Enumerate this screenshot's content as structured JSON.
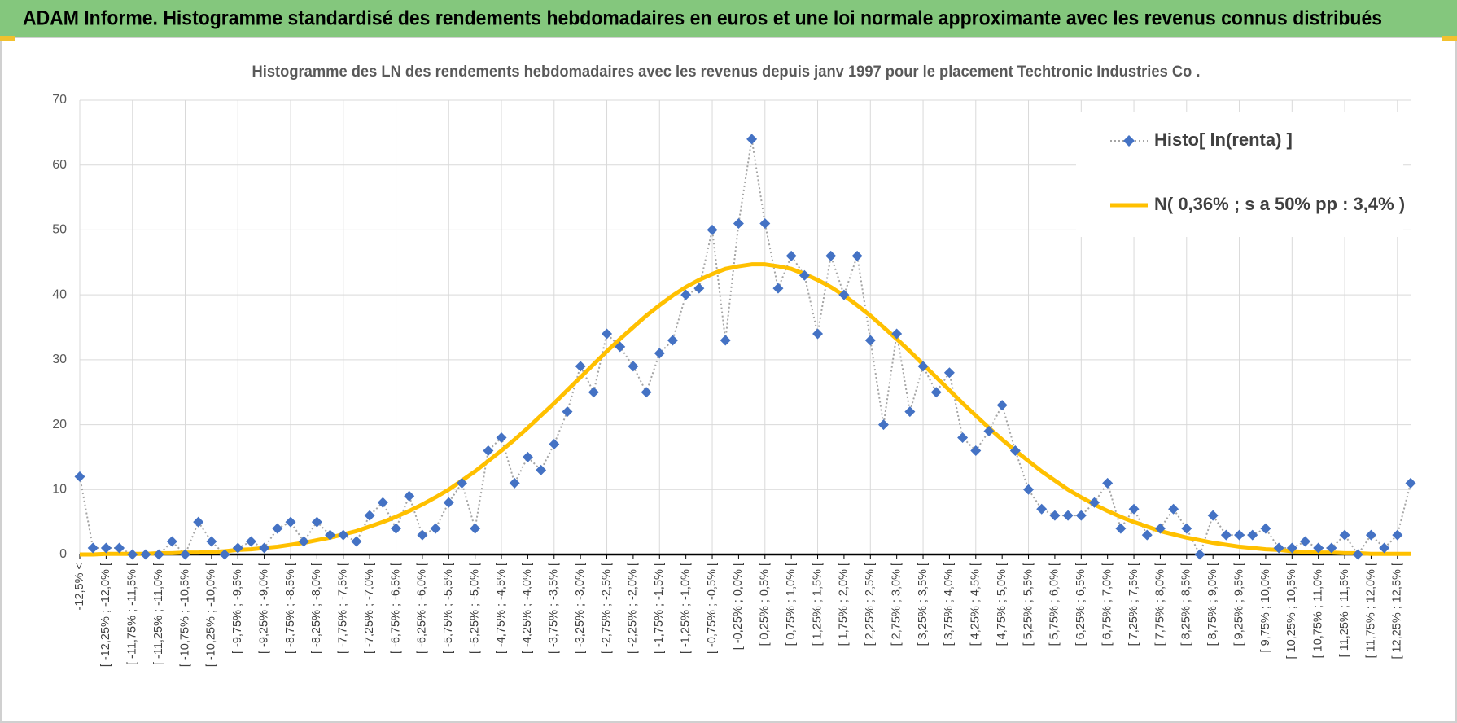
{
  "header": {
    "title": "ADAM Informe. Histogramme standardisé des rendements hebdomadaires en euros et une loi normale approximante avec les revenus connus distribués"
  },
  "chart_data": {
    "type": "line",
    "title": "Histogramme des LN des rendements hebdomadaires avec les revenus depuis janv 1997 pour le placement Techtronic Industries Co .",
    "categories": [
      "-12,5% <",
      null,
      "[ -12,25% ; -12,0% [",
      null,
      "[ -11,75% ; -11,5% [",
      null,
      "[ -11,25% ; -11,0% [",
      null,
      "[ -10,75% ; -10,5% [",
      null,
      "[ -10,25% ; -10,0% [",
      null,
      "[ -9,75% ; -9,5% [",
      null,
      "[ -9,25% ; -9,0% [",
      null,
      "[ -8,75% ; -8,5% [",
      null,
      "[ -8,25% ; -8,0% [",
      null,
      "[ -7,75% ; -7,5% [",
      null,
      "[ -7,25% ; -7,0% [",
      null,
      "[ -6,75% ; -6,5% [",
      null,
      "[ -6,25% ; -6,0% [",
      null,
      "[ -5,75% ; -5,5% [",
      null,
      "[ -5,25% ; -5,0% [",
      null,
      "[ -4,75% ; -4,5% [",
      null,
      "[ -4,25% ; -4,0% [",
      null,
      "[ -3,75% ; -3,5% [",
      null,
      "[ -3,25% ; -3,0% [",
      null,
      "[ -2,75% ; -2,5% [",
      null,
      "[ -2,25% ; -2,0% [",
      null,
      "[ -1,75% ; -1,5% [",
      null,
      "[ -1,25% ; -1,0% [",
      null,
      "[ -0,75% ; -0,5% [",
      null,
      "[ -0,25% ; 0,0% [",
      null,
      "[ 0,25% ; 0,5% [",
      null,
      "[ 0,75% ; 1,0% [",
      null,
      "[ 1,25% ; 1,5% [",
      null,
      "[ 1,75% ; 2,0% [",
      null,
      "[ 2,25% ; 2,5% [",
      null,
      "[ 2,75% ; 3,0% [",
      null,
      "[ 3,25% ; 3,5% [",
      null,
      "[ 3,75% ; 4,0% [",
      null,
      "[ 4,25% ; 4,5% [",
      null,
      "[ 4,75% ; 5,0% [",
      null,
      "[ 5,25% ; 5,5% [",
      null,
      "[ 5,75% ; 6,0% [",
      null,
      "[ 6,25% ; 6,5% [",
      null,
      "[ 6,75% ; 7,0% [",
      null,
      "[ 7,25% ; 7,5% [",
      null,
      "[ 7,75% ; 8,0% [",
      null,
      "[ 8,25% ; 8,5% [",
      null,
      "[ 8,75% ; 9,0% [",
      null,
      "[ 9,25% ; 9,5% [",
      null,
      "[ 9,75% ; 10,0% [",
      null,
      "[ 10,25% ; 10,5% [",
      null,
      "[ 10,75% ; 11,0% [",
      null,
      "[ 11,25% ; 11,5% [",
      null,
      "[ 11,75% ; 12,0% [",
      null,
      "[ 12,25% ; 12,5% [",
      null
    ],
    "series": [
      {
        "name": "Histo[ ln(renta) ]",
        "color": "#4472c4",
        "line_color": "#a5a5a5",
        "line_style": "dotted",
        "marker": "diamond",
        "values": [
          12,
          1,
          1,
          1,
          0,
          0,
          0,
          2,
          0,
          5,
          2,
          0,
          1,
          2,
          1,
          4,
          5,
          2,
          5,
          3,
          3,
          2,
          6,
          8,
          4,
          9,
          3,
          4,
          8,
          11,
          4,
          16,
          18,
          11,
          15,
          13,
          17,
          22,
          29,
          25,
          34,
          32,
          29,
          25,
          31,
          33,
          40,
          41,
          50,
          33,
          51,
          64,
          51,
          41,
          46,
          43,
          34,
          46,
          40,
          46,
          33,
          20,
          34,
          22,
          29,
          25,
          28,
          18,
          16,
          19,
          23,
          16,
          10,
          7,
          6,
          6,
          6,
          8,
          11,
          4,
          7,
          3,
          4,
          7,
          4,
          0,
          6,
          3,
          3,
          3,
          4,
          1,
          1,
          2,
          1,
          1,
          3,
          0,
          3,
          1,
          3,
          11
        ]
      },
      {
        "name": "N( 0,36% ; s a 50% pp : 3,4% )",
        "color": "#ffc000",
        "line_style": "solid",
        "values": [
          0.0,
          0.0,
          0.1,
          0.1,
          0.1,
          0.1,
          0.2,
          0.2,
          0.3,
          0.3,
          0.4,
          0.5,
          0.7,
          0.8,
          1.0,
          1.2,
          1.5,
          1.8,
          2.2,
          2.6,
          3.1,
          3.6,
          4.3,
          5.0,
          5.8,
          6.7,
          7.7,
          8.8,
          10.0,
          11.4,
          12.8,
          14.4,
          16.0,
          17.7,
          19.5,
          21.4,
          23.3,
          25.3,
          27.3,
          29.3,
          31.3,
          33.2,
          35.0,
          36.8,
          38.4,
          39.9,
          41.2,
          42.3,
          43.2,
          44.0,
          44.4,
          44.7,
          44.7,
          44.4,
          44.0,
          43.2,
          42.3,
          41.2,
          39.9,
          38.4,
          36.8,
          35.0,
          33.2,
          31.3,
          29.3,
          27.3,
          25.3,
          23.3,
          21.4,
          19.5,
          17.7,
          16.0,
          14.4,
          12.8,
          11.4,
          10.0,
          8.8,
          7.7,
          6.7,
          5.8,
          5.0,
          4.3,
          3.6,
          3.1,
          2.6,
          2.2,
          1.8,
          1.5,
          1.2,
          1.0,
          0.8,
          0.7,
          0.5,
          0.4,
          0.3,
          0.3,
          0.2,
          0.2,
          0.1,
          0.1,
          0.1,
          0.1
        ]
      }
    ],
    "ylim": [
      0,
      70
    ],
    "yticks": [
      0,
      10,
      20,
      30,
      40,
      50,
      60,
      70
    ],
    "grid": true,
    "legend": "top-right"
  }
}
